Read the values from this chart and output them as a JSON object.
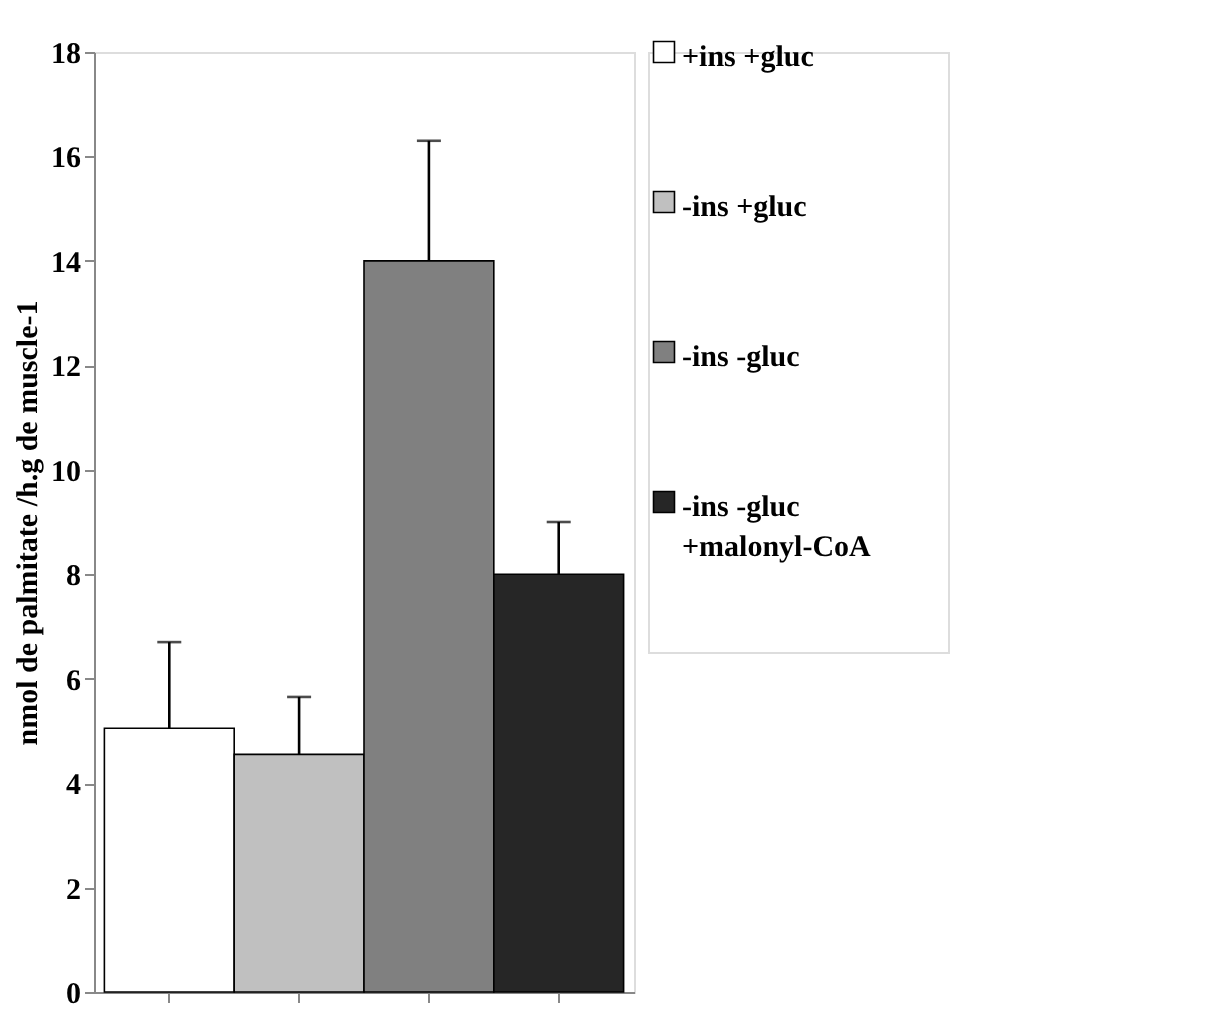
{
  "chart_data": {
    "type": "bar",
    "ylabel": "nmol de palmitate /h.g de muscle-1",
    "categories": [
      null
    ],
    "series": [
      {
        "name": "+ins +gluc",
        "color": "#ffffff",
        "values": [
          5.05
        ],
        "errors": [
          [
            5.05,
            6.7
          ]
        ]
      },
      {
        "name": "-ins +gluc",
        "color": "#c0c0c0",
        "values": [
          4.55
        ],
        "errors": [
          [
            4.55,
            5.65
          ]
        ]
      },
      {
        "name": "-ins -gluc",
        "color": "#808080",
        "values": [
          14.0
        ],
        "errors": [
          [
            14.0,
            16.3
          ]
        ]
      },
      {
        "name": "-ins -gluc\n+malonyl-CoA",
        "color": "#262626",
        "values": [
          8.0
        ],
        "errors": [
          [
            8.0,
            9.0
          ]
        ]
      }
    ],
    "ylim": [
      0,
      18
    ],
    "yticks": [
      0,
      2,
      4,
      6,
      8,
      10,
      12,
      14,
      16,
      18
    ],
    "grid": false,
    "legend": "right",
    "tick_labels": "y"
  }
}
